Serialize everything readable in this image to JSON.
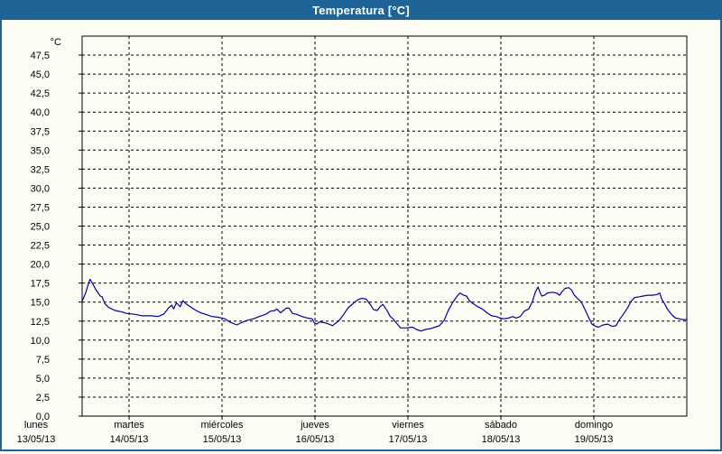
{
  "window": {
    "title": "Temperatura [°C]"
  },
  "colors": {
    "titlebar_bg": "#1E6497",
    "window_border": "#1E6497",
    "background": "#FDFDF6",
    "grid": "#000000",
    "frame": "#000000",
    "text": "#000000",
    "title_text": "#FFFFFF",
    "line": "#0000A0"
  },
  "chart_data": {
    "type": "line",
    "title": "Temperatura [°C]",
    "ylabel": "°C",
    "y_axis": {
      "min": 0,
      "max": 50,
      "tick_step": 2.5,
      "grid": "dashed",
      "tick_labels": [
        "0,0",
        "2,5",
        "5,0",
        "7,5",
        "10,0",
        "12,5",
        "15,0",
        "17,5",
        "20,0",
        "22,5",
        "25,0",
        "27,5",
        "30,0",
        "32,5",
        "35,0",
        "37,5",
        "40,0",
        "42,5",
        "45,0",
        "47,5"
      ]
    },
    "x_axis": {
      "grid": "dashed",
      "days": [
        {
          "name": "lunes",
          "date": "13/05/13"
        },
        {
          "name": "martes",
          "date": "14/05/13"
        },
        {
          "name": "miércoles",
          "date": "15/05/13"
        },
        {
          "name": "jueves",
          "date": "16/05/13"
        },
        {
          "name": "viernes",
          "date": "17/05/13"
        },
        {
          "name": "sábado",
          "date": "18/05/13"
        },
        {
          "name": "domingo",
          "date": "19/05/13"
        }
      ]
    },
    "visible_range_days": [
      0.49,
      7
    ],
    "series": [
      {
        "name": "Temperatura",
        "unit": "°C",
        "color": "#0000A0",
        "points_t_days_v_celsius": [
          [
            0.49,
            15.1
          ],
          [
            0.53,
            16.1
          ],
          [
            0.56,
            17.3
          ],
          [
            0.58,
            18.0
          ],
          [
            0.61,
            17.4
          ],
          [
            0.64,
            16.7
          ],
          [
            0.69,
            15.8
          ],
          [
            0.71,
            15.7
          ],
          [
            0.74,
            14.8
          ],
          [
            0.78,
            14.3
          ],
          [
            0.85,
            13.9
          ],
          [
            0.92,
            13.7
          ],
          [
            0.98,
            13.5
          ],
          [
            1.06,
            13.4
          ],
          [
            1.14,
            13.2
          ],
          [
            1.24,
            13.2
          ],
          [
            1.31,
            13.1
          ],
          [
            1.37,
            13.4
          ],
          [
            1.43,
            14.3
          ],
          [
            1.46,
            14.6
          ],
          [
            1.48,
            14.1
          ],
          [
            1.51,
            14.9
          ],
          [
            1.55,
            14.4
          ],
          [
            1.58,
            15.2
          ],
          [
            1.61,
            14.8
          ],
          [
            1.67,
            14.3
          ],
          [
            1.72,
            13.9
          ],
          [
            1.77,
            13.6
          ],
          [
            1.82,
            13.4
          ],
          [
            1.89,
            13.1
          ],
          [
            1.96,
            13.0
          ],
          [
            2.0,
            12.9
          ],
          [
            2.03,
            12.8
          ],
          [
            2.08,
            12.4
          ],
          [
            2.16,
            12.0
          ],
          [
            2.21,
            12.3
          ],
          [
            2.27,
            12.6
          ],
          [
            2.34,
            12.8
          ],
          [
            2.4,
            13.1
          ],
          [
            2.47,
            13.4
          ],
          [
            2.52,
            13.8
          ],
          [
            2.57,
            13.9
          ],
          [
            2.59,
            14.1
          ],
          [
            2.63,
            13.6
          ],
          [
            2.66,
            13.9
          ],
          [
            2.69,
            14.2
          ],
          [
            2.72,
            14.2
          ],
          [
            2.76,
            13.5
          ],
          [
            2.8,
            13.4
          ],
          [
            2.86,
            13.1
          ],
          [
            2.92,
            12.9
          ],
          [
            2.97,
            12.8
          ],
          [
            2.99,
            12.3
          ],
          [
            3.02,
            12.1
          ],
          [
            3.05,
            12.4
          ],
          [
            3.1,
            12.3
          ],
          [
            3.15,
            12.1
          ],
          [
            3.19,
            11.9
          ],
          [
            3.21,
            12.1
          ],
          [
            3.26,
            12.6
          ],
          [
            3.31,
            13.4
          ],
          [
            3.36,
            14.3
          ],
          [
            3.41,
            14.8
          ],
          [
            3.46,
            15.3
          ],
          [
            3.5,
            15.5
          ],
          [
            3.55,
            15.4
          ],
          [
            3.6,
            14.6
          ],
          [
            3.63,
            14.0
          ],
          [
            3.67,
            13.9
          ],
          [
            3.7,
            14.4
          ],
          [
            3.73,
            14.7
          ],
          [
            3.78,
            13.8
          ],
          [
            3.81,
            13.1
          ],
          [
            3.84,
            12.8
          ],
          [
            3.88,
            12.2
          ],
          [
            3.92,
            11.6
          ],
          [
            3.98,
            11.6
          ],
          [
            4.05,
            11.7
          ],
          [
            4.09,
            11.4
          ],
          [
            4.14,
            11.2
          ],
          [
            4.19,
            11.4
          ],
          [
            4.24,
            11.5
          ],
          [
            4.29,
            11.7
          ],
          [
            4.34,
            11.9
          ],
          [
            4.39,
            12.6
          ],
          [
            4.43,
            13.8
          ],
          [
            4.48,
            14.9
          ],
          [
            4.53,
            15.8
          ],
          [
            4.56,
            16.2
          ],
          [
            4.6,
            15.9
          ],
          [
            4.63,
            15.8
          ],
          [
            4.66,
            15.2
          ],
          [
            4.7,
            14.8
          ],
          [
            4.75,
            14.4
          ],
          [
            4.8,
            14.1
          ],
          [
            4.85,
            13.6
          ],
          [
            4.9,
            13.2
          ],
          [
            4.95,
            13.1
          ],
          [
            4.99,
            12.9
          ],
          [
            5.03,
            12.8
          ],
          [
            5.08,
            12.9
          ],
          [
            5.13,
            13.1
          ],
          [
            5.16,
            12.9
          ],
          [
            5.21,
            13.1
          ],
          [
            5.25,
            13.8
          ],
          [
            5.3,
            14.1
          ],
          [
            5.34,
            15.1
          ],
          [
            5.37,
            16.3
          ],
          [
            5.4,
            17.0
          ],
          [
            5.42,
            16.3
          ],
          [
            5.44,
            15.8
          ],
          [
            5.47,
            15.9
          ],
          [
            5.5,
            16.2
          ],
          [
            5.55,
            16.3
          ],
          [
            5.6,
            16.2
          ],
          [
            5.63,
            15.9
          ],
          [
            5.66,
            16.4
          ],
          [
            5.69,
            16.8
          ],
          [
            5.73,
            16.9
          ],
          [
            5.76,
            16.6
          ],
          [
            5.79,
            15.9
          ],
          [
            5.83,
            15.4
          ],
          [
            5.86,
            15.1
          ],
          [
            5.89,
            14.4
          ],
          [
            5.92,
            13.6
          ],
          [
            5.95,
            12.8
          ],
          [
            5.98,
            12.1
          ],
          [
            6.02,
            11.8
          ],
          [
            6.05,
            11.7
          ],
          [
            6.1,
            12.0
          ],
          [
            6.15,
            12.1
          ],
          [
            6.18,
            11.9
          ],
          [
            6.2,
            11.8
          ],
          [
            6.24,
            11.9
          ],
          [
            6.27,
            12.6
          ],
          [
            6.3,
            13.1
          ],
          [
            6.34,
            13.8
          ],
          [
            6.37,
            14.4
          ],
          [
            6.4,
            15.1
          ],
          [
            6.44,
            15.6
          ],
          [
            6.49,
            15.7
          ],
          [
            6.53,
            15.8
          ],
          [
            6.58,
            15.9
          ],
          [
            6.63,
            15.9
          ],
          [
            6.68,
            16.0
          ],
          [
            6.71,
            16.2
          ],
          [
            6.73,
            15.4
          ],
          [
            6.76,
            14.8
          ],
          [
            6.79,
            14.1
          ],
          [
            6.82,
            13.6
          ],
          [
            6.85,
            13.2
          ],
          [
            6.88,
            12.9
          ],
          [
            6.92,
            12.8
          ],
          [
            6.95,
            12.7
          ],
          [
            7.0,
            12.7
          ]
        ]
      }
    ]
  }
}
